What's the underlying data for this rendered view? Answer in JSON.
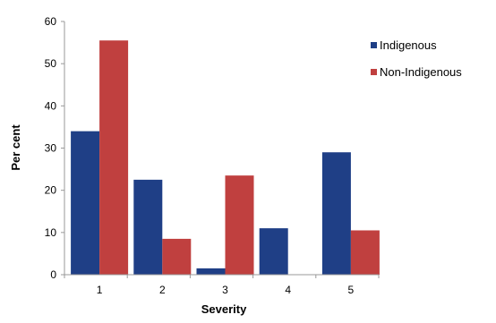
{
  "chart_data": {
    "type": "bar",
    "title": "",
    "xlabel": "Severity",
    "ylabel": "Per cent",
    "categories": [
      "1",
      "2",
      "3",
      "4",
      "5"
    ],
    "series": [
      {
        "name": "Indigenous",
        "values": [
          34,
          22.5,
          1.5,
          11,
          29
        ],
        "color": "#1f3f86"
      },
      {
        "name": "Non-Indigenous",
        "values": [
          55.5,
          8.5,
          23.5,
          0,
          10.5
        ],
        "color": "#c0403f"
      }
    ],
    "ylim": [
      0,
      60
    ],
    "yticks": [
      0,
      10,
      20,
      30,
      40,
      50,
      60
    ],
    "grid": false,
    "legend_position": "top-right"
  }
}
